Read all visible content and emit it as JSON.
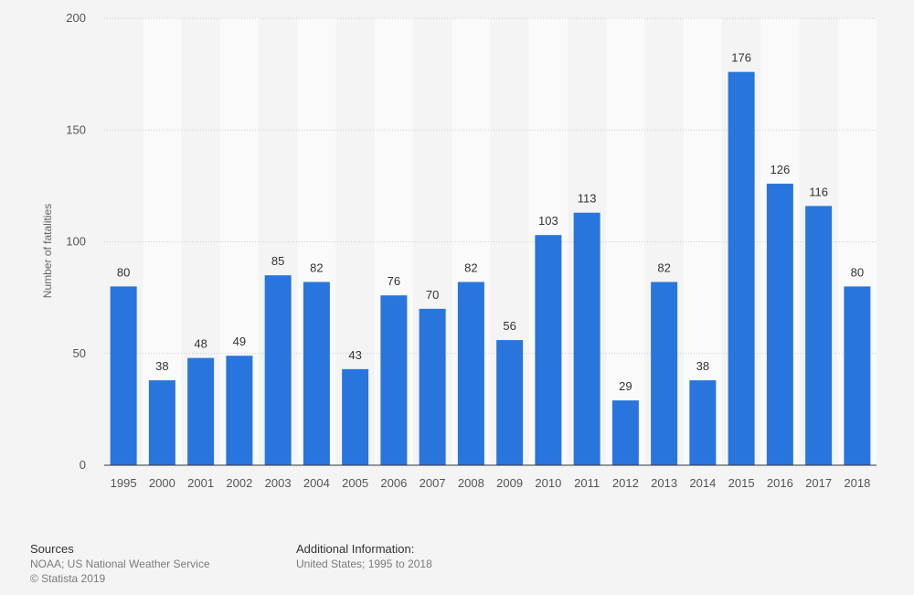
{
  "chart_data": {
    "type": "bar",
    "title": "",
    "ylabel": "Number of fatalities",
    "xlabel": "",
    "ylim": [
      0,
      200
    ],
    "yticks": [
      0,
      50,
      100,
      150,
      200
    ],
    "categories": [
      "1995",
      "2000",
      "2001",
      "2002",
      "2003",
      "2004",
      "2005",
      "2006",
      "2007",
      "2008",
      "2009",
      "2010",
      "2011",
      "2012",
      "2013",
      "2014",
      "2015",
      "2016",
      "2017",
      "2018"
    ],
    "values": [
      80,
      38,
      48,
      49,
      85,
      82,
      43,
      76,
      70,
      82,
      56,
      103,
      113,
      29,
      82,
      38,
      176,
      126,
      116,
      80
    ],
    "grid": true,
    "bar_color": "#2876dd",
    "data_labels": true
  },
  "footer": {
    "sources_title": "Sources",
    "sources_line1": "NOAA; US National Weather Service",
    "sources_line2": "© Statista 2019",
    "addinfo_title": "Additional Information:",
    "addinfo_line1": "United States; 1995 to 2018"
  }
}
